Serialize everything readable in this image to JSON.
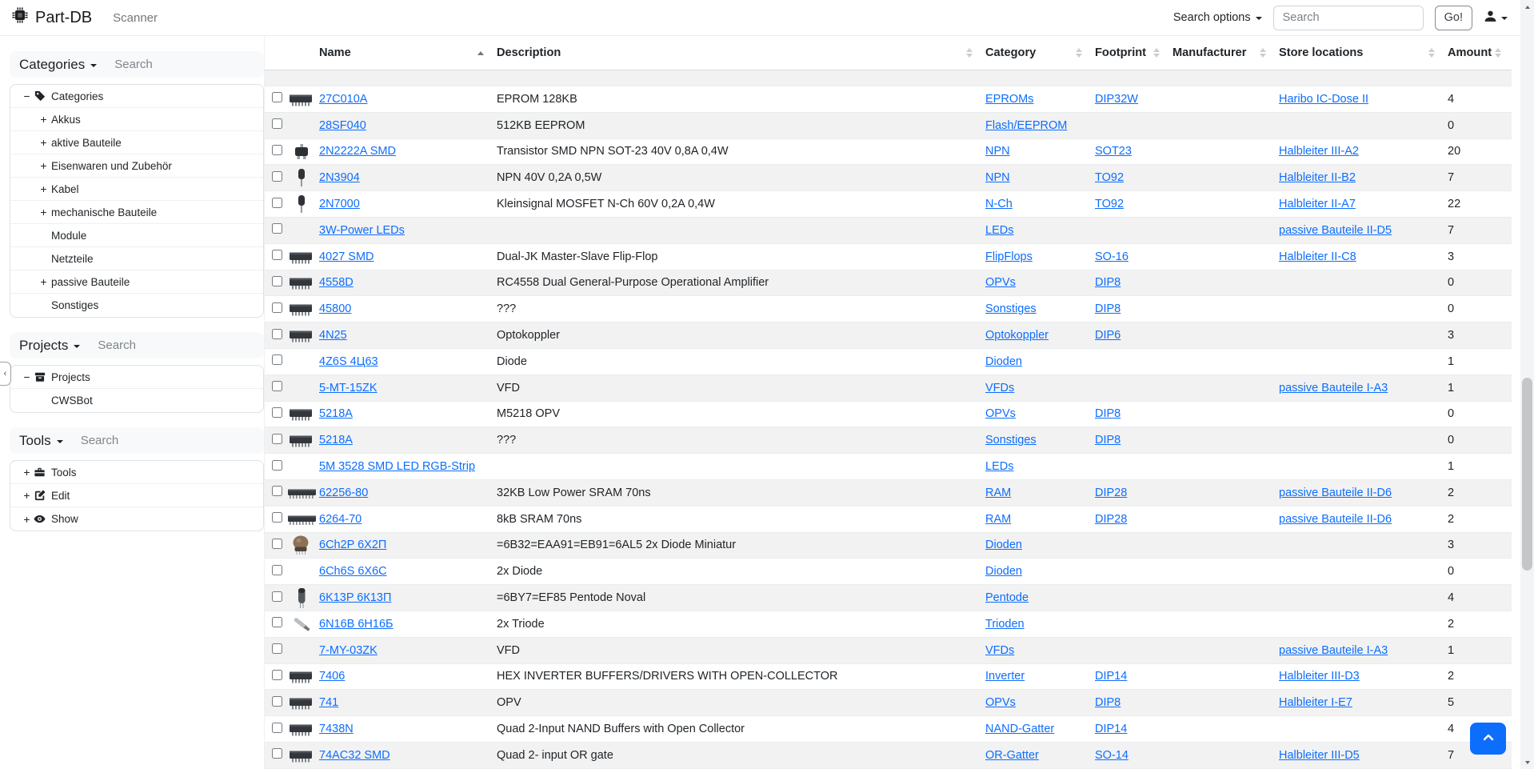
{
  "navbar": {
    "brand": "Part-DB",
    "scanner_label": "Scanner",
    "search_options_label": "Search options",
    "search_placeholder": "Search",
    "go_label": "Go!",
    "brand_icon": "microchip-icon",
    "user_icon": "person-icon"
  },
  "sidebar": {
    "collapse_handle": "‹",
    "sections": [
      {
        "title": "Categories",
        "search_placeholder": "Search",
        "items": [
          {
            "label": "Categories",
            "level": 0,
            "expander": "−",
            "icon": "tag-icon"
          },
          {
            "label": "Akkus",
            "level": 1,
            "expander": "+"
          },
          {
            "label": "aktive Bauteile",
            "level": 1,
            "expander": "+"
          },
          {
            "label": "Eisenwaren und Zubehör",
            "level": 1,
            "expander": "+"
          },
          {
            "label": "Kabel",
            "level": 1,
            "expander": "+"
          },
          {
            "label": "mechanische Bauteile",
            "level": 1,
            "expander": "+"
          },
          {
            "label": "Module",
            "level": 1,
            "expander": ""
          },
          {
            "label": "Netzteile",
            "level": 1,
            "expander": ""
          },
          {
            "label": "passive Bauteile",
            "level": 1,
            "expander": "+"
          },
          {
            "label": "Sonstiges",
            "level": 1,
            "expander": ""
          }
        ]
      },
      {
        "title": "Projects",
        "search_placeholder": "Search",
        "items": [
          {
            "label": "Projects",
            "level": 0,
            "expander": "−",
            "icon": "archive-icon"
          },
          {
            "label": "CWSBot",
            "level": 1,
            "expander": ""
          }
        ]
      },
      {
        "title": "Tools",
        "search_placeholder": "Search",
        "items": [
          {
            "label": "Tools",
            "level": 0,
            "expander": "+",
            "icon": "toolbox-icon"
          },
          {
            "label": "Edit",
            "level": 0,
            "expander": "+",
            "icon": "pencil-square-icon"
          },
          {
            "label": "Show",
            "level": 0,
            "expander": "+",
            "icon": "eye-icon"
          }
        ]
      }
    ]
  },
  "table": {
    "columns": [
      {
        "key": "name",
        "label": "Name",
        "sort": "asc"
      },
      {
        "key": "description",
        "label": "Description",
        "sort": "none"
      },
      {
        "key": "category",
        "label": "Category",
        "sort": "none"
      },
      {
        "key": "footprint",
        "label": "Footprint",
        "sort": "none"
      },
      {
        "key": "manufacturer",
        "label": "Manufacturer",
        "sort": "none"
      },
      {
        "key": "location",
        "label": "Store locations",
        "sort": "none"
      },
      {
        "key": "amount",
        "label": "Amount",
        "sort": "none"
      }
    ],
    "rows": [
      {
        "name": "27C010A",
        "description": "EPROM 128KB",
        "category": "EPROMs",
        "footprint": "DIP32W",
        "manufacturer": "",
        "location": "Haribo IC-Dose II",
        "amount": "4",
        "thumb": "dip"
      },
      {
        "name": "28SF040",
        "description": "512KB EEPROM",
        "category": "Flash/EEPROM",
        "footprint": "",
        "manufacturer": "",
        "location": "",
        "amount": "0",
        "thumb": null
      },
      {
        "name": "2N2222A SMD",
        "description": "Transistor SMD NPN SOT-23 40V 0,8A 0,4W",
        "category": "NPN",
        "footprint": "SOT23",
        "manufacturer": "",
        "location": "Halbleiter III-A2",
        "amount": "20",
        "thumb": "sot23"
      },
      {
        "name": "2N3904",
        "description": "NPN 40V 0,2A 0,5W",
        "category": "NPN",
        "footprint": "TO92",
        "manufacturer": "",
        "location": "Halbleiter II-B2",
        "amount": "7",
        "thumb": "to92"
      },
      {
        "name": "2N7000",
        "description": "Kleinsignal MOSFET N-Ch 60V 0,2A 0,4W",
        "category": "N-Ch",
        "footprint": "TO92",
        "manufacturer": "",
        "location": "Halbleiter II-A7",
        "amount": "22",
        "thumb": "to92"
      },
      {
        "name": "3W-Power LEDs",
        "description": "",
        "category": "LEDs",
        "footprint": "",
        "manufacturer": "",
        "location": "passive Bauteile II-D5",
        "amount": "7",
        "thumb": null
      },
      {
        "name": "4027 SMD",
        "description": "Dual-JK Master-Slave Flip-Flop",
        "category": "FlipFlops",
        "footprint": "SO-16",
        "manufacturer": "",
        "location": "Halbleiter II-C8",
        "amount": "3",
        "thumb": "dip"
      },
      {
        "name": "4558D",
        "description": "RC4558 Dual General-Purpose Operational Amplifier",
        "category": "OPVs",
        "footprint": "DIP8",
        "manufacturer": "",
        "location": "",
        "amount": "0",
        "thumb": "dip"
      },
      {
        "name": "45800",
        "description": "???",
        "category": "Sonstiges",
        "footprint": "DIP8",
        "manufacturer": "",
        "location": "",
        "amount": "0",
        "thumb": "dip"
      },
      {
        "name": "4N25",
        "description": "Optokoppler",
        "category": "Optokoppler",
        "footprint": "DIP6",
        "manufacturer": "",
        "location": "",
        "amount": "3",
        "thumb": "dip"
      },
      {
        "name": "4Z6S 4Ц63",
        "description": "Diode",
        "category": "Dioden",
        "footprint": "",
        "manufacturer": "",
        "location": "",
        "amount": "1",
        "thumb": null
      },
      {
        "name": "5-MT-15ZK",
        "description": "VFD",
        "category": "VFDs",
        "footprint": "",
        "manufacturer": "",
        "location": "passive Bauteile I-A3",
        "amount": "1",
        "thumb": null
      },
      {
        "name": "5218A",
        "description": "M5218 OPV",
        "category": "OPVs",
        "footprint": "DIP8",
        "manufacturer": "",
        "location": "",
        "amount": "0",
        "thumb": "dip"
      },
      {
        "name": "5218A",
        "description": "???",
        "category": "Sonstiges",
        "footprint": "DIP8",
        "manufacturer": "",
        "location": "",
        "amount": "0",
        "thumb": "dip"
      },
      {
        "name": "5M 3528 SMD LED RGB-Strip",
        "description": "",
        "category": "LEDs",
        "footprint": "",
        "manufacturer": "",
        "location": "",
        "amount": "1",
        "thumb": null
      },
      {
        "name": "62256-80",
        "description": "32KB Low Power SRAM 70ns",
        "category": "RAM",
        "footprint": "DIP28",
        "manufacturer": "",
        "location": "passive Bauteile II-D6",
        "amount": "2",
        "thumb": "dip-long"
      },
      {
        "name": "6264-70",
        "description": "8kB SRAM 70ns",
        "category": "RAM",
        "footprint": "DIP28",
        "manufacturer": "",
        "location": "passive Bauteile II-D6",
        "amount": "2",
        "thumb": "dip-long"
      },
      {
        "name": "6Ch2P 6Х2П",
        "description": "=6B32=EAA91=EB91=6AL5 2x Diode Miniatur",
        "category": "Dioden",
        "footprint": "",
        "manufacturer": "",
        "location": "",
        "amount": "3",
        "thumb": "tube"
      },
      {
        "name": "6Ch6S 6Х6С",
        "description": "2x Diode",
        "category": "Dioden",
        "footprint": "",
        "manufacturer": "",
        "location": "",
        "amount": "0",
        "thumb": null
      },
      {
        "name": "6K13P 6К13П",
        "description": "=6BY7=EF85 Pentode Noval",
        "category": "Pentode",
        "footprint": "",
        "manufacturer": "",
        "location": "",
        "amount": "4",
        "thumb": "tube-v"
      },
      {
        "name": "6N16B 6Н16Б",
        "description": "2x Triode",
        "category": "Trioden",
        "footprint": "",
        "manufacturer": "",
        "location": "",
        "amount": "2",
        "thumb": "tube-d"
      },
      {
        "name": "7-MY-03ZK",
        "description": "VFD",
        "category": "VFDs",
        "footprint": "",
        "manufacturer": "",
        "location": "passive Bauteile I-A3",
        "amount": "1",
        "thumb": null
      },
      {
        "name": "7406",
        "description": "HEX INVERTER BUFFERS/DRIVERS WITH OPEN-COLLECTOR",
        "category": "Inverter",
        "footprint": "DIP14",
        "manufacturer": "",
        "location": "Halbleiter III-D3",
        "amount": "2",
        "thumb": "dip"
      },
      {
        "name": "741",
        "description": "OPV",
        "category": "OPVs",
        "footprint": "DIP8",
        "manufacturer": "",
        "location": "Halbleiter I-E7",
        "amount": "5",
        "thumb": "dip"
      },
      {
        "name": "7438N",
        "description": "Quad 2-Input NAND Buffers with Open Collector",
        "category": "NAND-Gatter",
        "footprint": "DIP14",
        "manufacturer": "",
        "location": "",
        "amount": "4",
        "thumb": "dip"
      },
      {
        "name": "74AC32 SMD",
        "description": "Quad 2- input OR gate",
        "category": "OR-Gatter",
        "footprint": "SO-14",
        "manufacturer": "",
        "location": "Halbleiter III-D5",
        "amount": "7",
        "thumb": "dip"
      }
    ]
  },
  "floating": {
    "scroll_top_icon": "chevron-up-icon"
  },
  "colors": {
    "link": "#0d6efd",
    "accent": "#0d6efd",
    "stripe": "rgba(0,0,0,0.05)",
    "border": "#dee2e6"
  }
}
